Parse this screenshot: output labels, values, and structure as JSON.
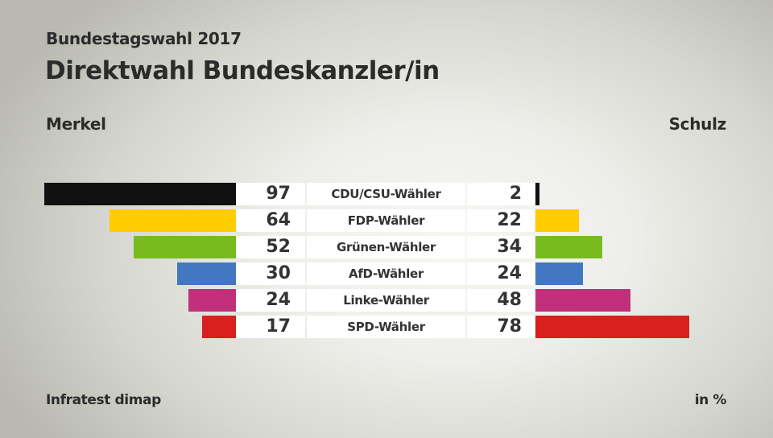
{
  "chart_data": {
    "type": "bar",
    "subtitle": "Bundestagswahl 2017",
    "title": "Direktwahl Bundeskanzler/in",
    "left_label": "Merkel",
    "right_label": "Schulz",
    "source": "Infratest dimap",
    "unit": "in %",
    "categories": [
      "CDU/CSU-Wähler",
      "FDP-Wähler",
      "Grünen-Wähler",
      "AfD-Wähler",
      "Linke-Wähler",
      "SPD-Wähler"
    ],
    "colors": [
      "#111111",
      "#ffcc00",
      "#78bb1e",
      "#4277c2",
      "#c1307a",
      "#d8201e"
    ],
    "series": [
      {
        "name": "Merkel",
        "values": [
          97,
          64,
          52,
          30,
          24,
          17
        ]
      },
      {
        "name": "Schulz",
        "values": [
          2,
          22,
          34,
          24,
          48,
          78
        ]
      }
    ],
    "xlim": [
      0,
      100
    ]
  }
}
